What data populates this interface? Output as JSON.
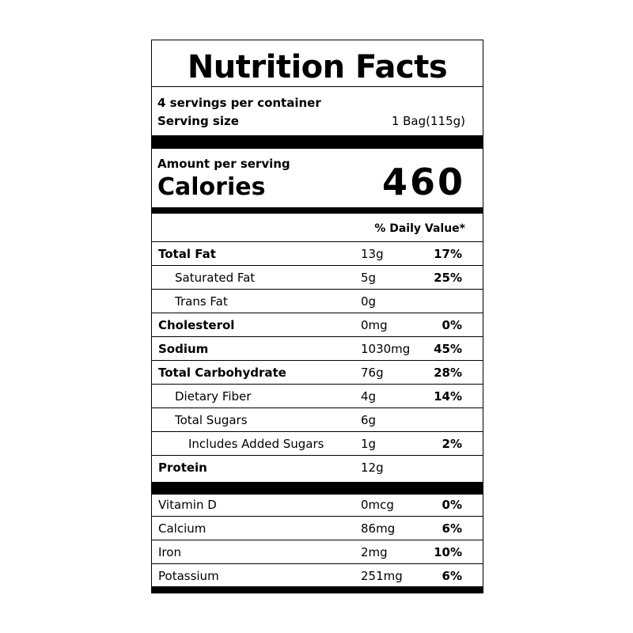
{
  "header": {
    "title": "Nutrition Facts",
    "servings": "4 servings per container",
    "serving_size_label": "Serving size",
    "serving_size": "1 Bag(115g)"
  },
  "calories": {
    "amount_label": "Amount per serving",
    "label": "Calories",
    "value": "460"
  },
  "dv_header": "% Daily Value*",
  "nutrients": [
    {
      "name": "Total Fat",
      "amount": "13g",
      "dv": "17%"
    },
    {
      "name": "Saturated Fat",
      "amount": "5g",
      "dv": "25%"
    },
    {
      "name": "Trans Fat",
      "amount": "0g"
    },
    {
      "name": "Cholesterol",
      "amount": "0mg",
      "dv": "0%"
    },
    {
      "name": "Sodium",
      "amount": "1030mg",
      "dv": "45%"
    },
    {
      "name": "Total Carbohydrate",
      "amount": "76g",
      "dv": "28%"
    },
    {
      "name": "Dietary Fiber",
      "amount": "4g",
      "dv": "14%"
    },
    {
      "name": "Total Sugars",
      "amount": "6g"
    },
    {
      "name": "Includes Added Sugars",
      "amount": "1g",
      "dv": "2%"
    },
    {
      "name": "Protein",
      "amount": "12g"
    }
  ],
  "vitamins": [
    {
      "name": "Vitamin D",
      "amount": "0mcg",
      "dv": "0%"
    },
    {
      "name": "Calcium",
      "amount": "86mg",
      "dv": "6%"
    },
    {
      "name": "Iron",
      "amount": "2mg",
      "dv": "10%"
    },
    {
      "name": "Potassium",
      "amount": "251mg",
      "dv": "6%"
    }
  ]
}
